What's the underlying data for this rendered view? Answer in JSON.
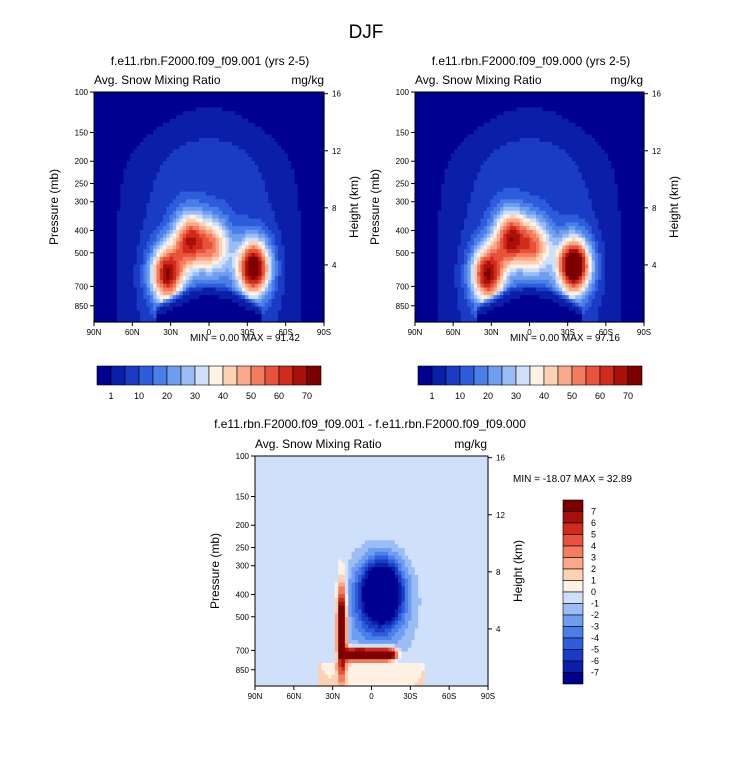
{
  "figure": {
    "title": "DJF"
  },
  "chart_data": [
    {
      "type": "heatmap",
      "title": "f.e11.rbn.F2000.f09_f09.001 (yrs 2-5)",
      "left_string": "Avg. Snow Mixing Ratio",
      "right_string": "mg/kg",
      "ylabel": "Pressure (mb)",
      "ylabel_right": "Height (km)",
      "xticks": [
        "90N",
        "60N",
        "30N",
        "0",
        "30S",
        "60S",
        "90S"
      ],
      "yticks": [
        "100",
        "150",
        "200",
        "250",
        "300",
        "400",
        "500",
        "700",
        "850"
      ],
      "yticks_right": [
        "16",
        "12",
        "8",
        "4"
      ],
      "xlim": [
        90,
        -90
      ],
      "ylim": [
        1000,
        100
      ],
      "stats": "MIN =  0.00  MAX = 91.42",
      "min": 0.0,
      "max": 91.42,
      "peaks": [
        {
          "lat": 33,
          "p": 620,
          "value": 62
        },
        {
          "lat": 15,
          "p": 440,
          "value": 52
        },
        {
          "lat": -4,
          "p": 470,
          "value": 38
        },
        {
          "lat": -35,
          "p": 580,
          "value": 72
        }
      ],
      "colorbar": {
        "labels": [
          "1",
          "10",
          "20",
          "30",
          "40",
          "50",
          "60",
          "70"
        ],
        "levels": [
          1,
          5,
          10,
          15,
          20,
          25,
          30,
          35,
          40,
          45,
          50,
          55,
          60,
          65,
          70
        ]
      }
    },
    {
      "type": "heatmap",
      "title": "f.e11.rbn.F2000.f09_f09.000 (yrs 2-5)",
      "left_string": "Avg. Snow Mixing Ratio",
      "right_string": "mg/kg",
      "ylabel": "Pressure (mb)",
      "ylabel_right": "Height (km)",
      "xticks": [
        "90N",
        "60N",
        "30N",
        "0",
        "30S",
        "60S",
        "90S"
      ],
      "yticks": [
        "100",
        "150",
        "200",
        "250",
        "300",
        "400",
        "500",
        "700",
        "850"
      ],
      "yticks_right": [
        "16",
        "12",
        "8",
        "4"
      ],
      "xlim": [
        90,
        -90
      ],
      "ylim": [
        1000,
        100
      ],
      "stats": "MIN =  0.00  MAX = 97.16",
      "min": 0.0,
      "max": 97.16,
      "peaks": [
        {
          "lat": 33,
          "p": 620,
          "value": 63
        },
        {
          "lat": 15,
          "p": 430,
          "value": 55
        },
        {
          "lat": -4,
          "p": 470,
          "value": 42
        },
        {
          "lat": -35,
          "p": 570,
          "value": 80
        }
      ],
      "colorbar": {
        "labels": [
          "1",
          "10",
          "20",
          "30",
          "40",
          "50",
          "60",
          "70"
        ],
        "levels": [
          1,
          5,
          10,
          15,
          20,
          25,
          30,
          35,
          40,
          45,
          50,
          55,
          60,
          65,
          70
        ]
      }
    },
    {
      "type": "heatmap",
      "title": "f.e11.rbn.F2000.f09_f09.001 - f.e11.rbn.F2000.f09_f09.000",
      "left_string": "Avg. Snow Mixing Ratio",
      "right_string": "mg/kg",
      "ylabel": "Pressure (mb)",
      "ylabel_right": "Height (km)",
      "xticks": [
        "90N",
        "60N",
        "30N",
        "0",
        "30S",
        "60S",
        "90S"
      ],
      "yticks": [
        "100",
        "150",
        "200",
        "250",
        "300",
        "400",
        "500",
        "700",
        "850"
      ],
      "yticks_right": [
        "16",
        "12",
        "8",
        "4"
      ],
      "xlim": [
        90,
        -90
      ],
      "ylim": [
        1000,
        100
      ],
      "stats": "MIN = -18.07  MAX =  32.89",
      "min": -18.07,
      "max": 32.89,
      "colorbar": {
        "labels": [
          "7",
          "6",
          "5",
          "4",
          "3",
          "2",
          "1",
          "0",
          "-1",
          "-2",
          "-3",
          "-4",
          "-5",
          "-6",
          "-7"
        ],
        "levels": [
          -7,
          -6,
          -5,
          -4,
          -3,
          -2,
          -1,
          0,
          1,
          2,
          3,
          4,
          5,
          6,
          7
        ]
      }
    }
  ],
  "palettes": {
    "blue_white_red": [
      "#00008f",
      "#0a1ea8",
      "#1a3cc4",
      "#2d5ddb",
      "#4a7ee8",
      "#6f9ef0",
      "#9bbdf5",
      "#cfe0fb",
      "#fff2e4",
      "#fdd2b4",
      "#f9a88a",
      "#f47c5e",
      "#e8523a",
      "#d02a1a",
      "#a9100a",
      "#7d0000"
    ]
  }
}
